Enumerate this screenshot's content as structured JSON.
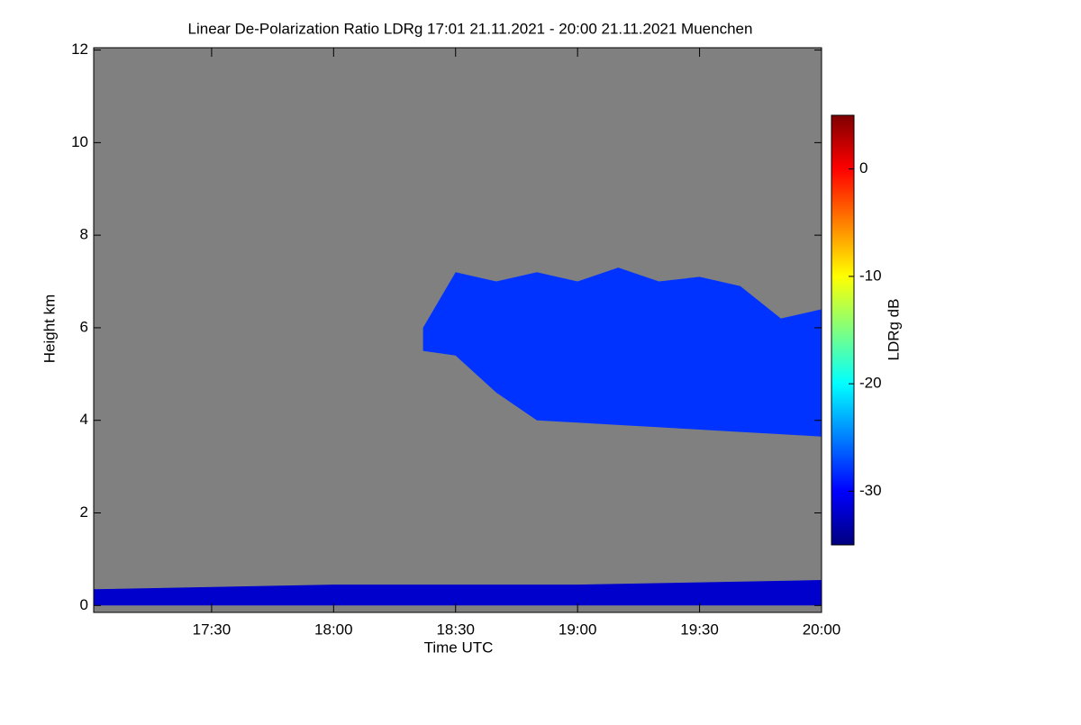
{
  "chart_data": {
    "type": "time-height",
    "title": "Linear De-Polarization Ratio LDRg   17:01 21.11.2021 - 20:00 21.11.2021 Muenchen",
    "xlabel": "Time UTC",
    "ylabel": "Height km",
    "xlim": [
      "17:01",
      "20:00"
    ],
    "xticks": [
      "17:30",
      "18:00",
      "18:30",
      "19:00",
      "19:30",
      "20:00"
    ],
    "ylim": [
      -0.15,
      12.05
    ],
    "yticks": [
      0,
      2,
      4,
      6,
      8,
      10,
      12
    ],
    "background": "#808080",
    "colorbar_label": "LDRg dB",
    "clim": [
      -35,
      5
    ],
    "cticks": [
      -30,
      -20,
      -10,
      0
    ],
    "layers": [
      {
        "x": [
          "18:22",
          "18:30",
          "18:40",
          "18:50",
          "19:00",
          "19:10",
          "19:20",
          "19:30",
          "19:40",
          "19:50",
          "20:00"
        ],
        "base": [
          5.5,
          5.4,
          4.6,
          4.0,
          3.95,
          3.9,
          3.85,
          3.8,
          3.75,
          3.7,
          3.65
        ],
        "top": [
          6.0,
          7.2,
          7.0,
          7.2,
          7.0,
          7.3,
          7.0,
          7.1,
          6.9,
          6.2,
          6.4
        ],
        "value": -28
      },
      {
        "x": [
          "17:01",
          "18:00",
          "19:00",
          "19:30",
          "20:00"
        ],
        "base": [
          0,
          0,
          0,
          0,
          0
        ],
        "top": [
          0.35,
          0.45,
          0.45,
          0.5,
          0.55
        ],
        "value": -32
      }
    ]
  }
}
